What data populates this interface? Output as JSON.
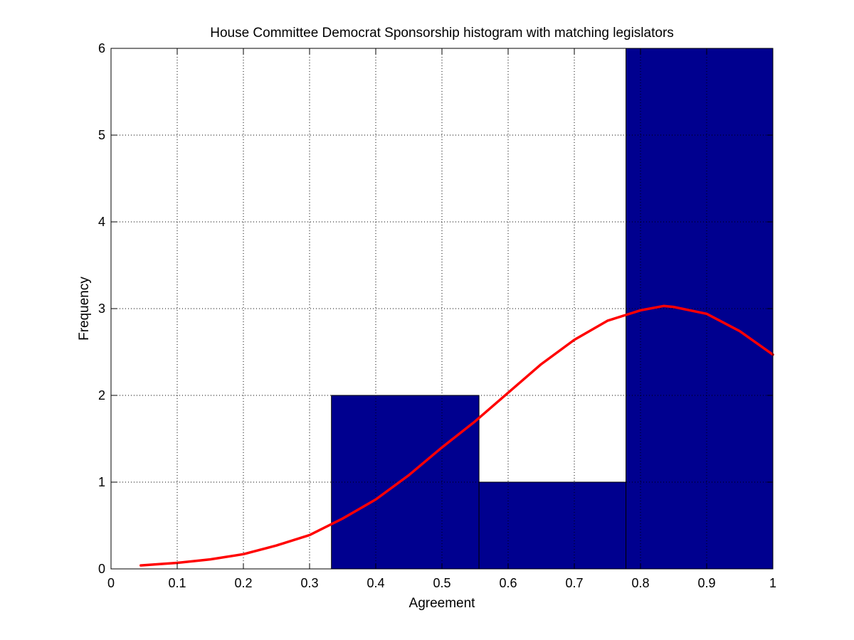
{
  "chart_data": {
    "type": "bar",
    "title": "House Committee Democrat Sponsorship histogram with matching legislators",
    "xlabel": "Agreement",
    "ylabel": "Frequency",
    "xlim": [
      0,
      1
    ],
    "ylim": [
      0,
      6
    ],
    "xticks": [
      "0",
      "0.1",
      "0.2",
      "0.3",
      "0.4",
      "0.5",
      "0.6",
      "0.7",
      "0.8",
      "0.9",
      "1"
    ],
    "yticks": [
      "0",
      "1",
      "2",
      "3",
      "4",
      "5",
      "6"
    ],
    "grid": true,
    "bins": [
      {
        "x0": 0.333,
        "x1": 0.556,
        "value": 2
      },
      {
        "x0": 0.556,
        "x1": 0.778,
        "value": 1
      },
      {
        "x0": 0.778,
        "x1": 1.0,
        "value": 6
      }
    ],
    "bar_color": "#00008f",
    "curve": {
      "type": "line",
      "color": "#ff0000",
      "x": [
        0.045,
        0.1,
        0.15,
        0.2,
        0.25,
        0.3,
        0.35,
        0.4,
        0.45,
        0.5,
        0.55,
        0.6,
        0.65,
        0.7,
        0.75,
        0.8,
        0.835,
        0.85,
        0.9,
        0.95,
        1.0
      ],
      "y": [
        0.04,
        0.07,
        0.11,
        0.17,
        0.27,
        0.39,
        0.58,
        0.8,
        1.08,
        1.4,
        1.7,
        2.03,
        2.36,
        2.64,
        2.86,
        2.98,
        3.03,
        3.02,
        2.94,
        2.74,
        2.47
      ]
    }
  }
}
